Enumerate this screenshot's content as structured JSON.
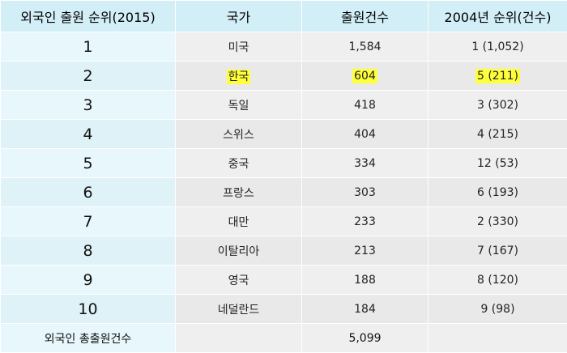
{
  "table": {
    "headers": [
      "외국인 출원 순위(2015)",
      "국가",
      "출원건수",
      "2004년 순위(건수)"
    ],
    "rows": [
      {
        "rank": "1",
        "country": "미국",
        "count": "1,584",
        "rank2004": "1 (1,052)",
        "highlight": false
      },
      {
        "rank": "2",
        "country": "한국",
        "count": "604",
        "rank2004": "5 (211)",
        "highlight": true
      },
      {
        "rank": "3",
        "country": "독일",
        "count": "418",
        "rank2004": "3 (302)",
        "highlight": false
      },
      {
        "rank": "4",
        "country": "스위스",
        "count": "404",
        "rank2004": "4 (215)",
        "highlight": false
      },
      {
        "rank": "5",
        "country": "중국",
        "count": "334",
        "rank2004": "12 (53)",
        "highlight": false
      },
      {
        "rank": "6",
        "country": "프랑스",
        "count": "303",
        "rank2004": "6 (193)",
        "highlight": false
      },
      {
        "rank": "7",
        "country": "대만",
        "count": "233",
        "rank2004": "2 (330)",
        "highlight": false
      },
      {
        "rank": "8",
        "country": "이탈리아",
        "count": "213",
        "rank2004": "7 (167)",
        "highlight": false
      },
      {
        "rank": "9",
        "country": "영국",
        "count": "188",
        "rank2004": "8 (120)",
        "highlight": false
      },
      {
        "rank": "10",
        "country": "네덜란드",
        "count": "184",
        "rank2004": "9 (98)",
        "highlight": false
      }
    ],
    "footer": {
      "label": "외국인 총출원건수",
      "value": "5,099"
    }
  },
  "colors": {
    "header_bg": "#d2eef6",
    "rank_bg": "#e7f7fb",
    "cell_bg": "#efefef",
    "highlight": "#ffff3a"
  }
}
